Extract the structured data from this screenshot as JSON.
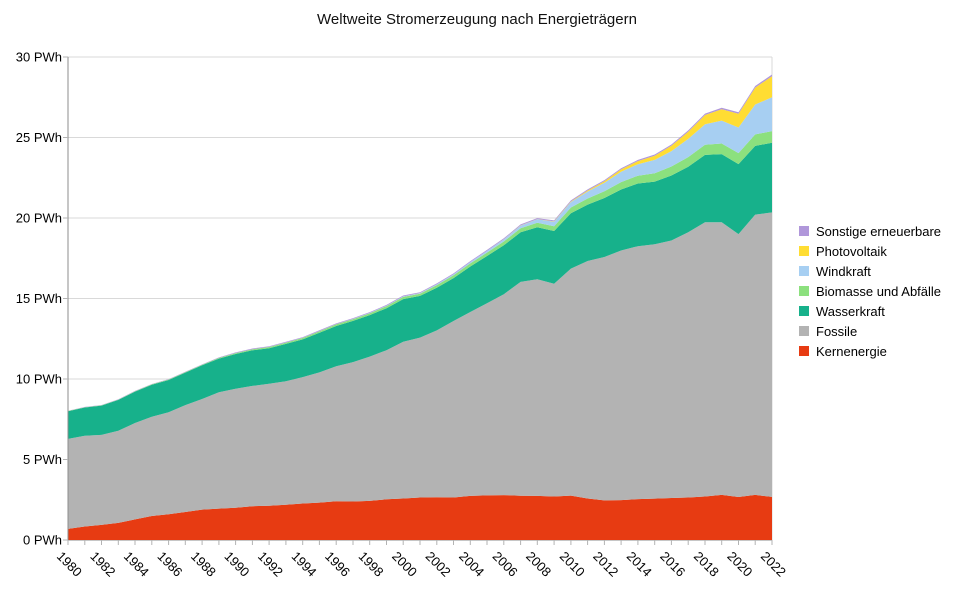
{
  "chart_data": {
    "type": "area",
    "stacked": true,
    "title": "Weltweite Stromerzeugung nach Energieträgern",
    "unit": "PWh",
    "ylim": [
      0,
      30
    ],
    "yticks": [
      0,
      5,
      10,
      15,
      20,
      25,
      30
    ],
    "ytick_suffix": " PWh",
    "x_label_every": 2,
    "grid": true,
    "legend_position": "right",
    "x": [
      1980,
      1981,
      1982,
      1983,
      1984,
      1985,
      1986,
      1987,
      1988,
      1989,
      1990,
      1991,
      1992,
      1993,
      1994,
      1995,
      1996,
      1997,
      1998,
      1999,
      2000,
      2001,
      2002,
      2003,
      2004,
      2005,
      2006,
      2007,
      2008,
      2009,
      2010,
      2011,
      2012,
      2013,
      2014,
      2015,
      2016,
      2017,
      2018,
      2019,
      2020,
      2021,
      2022
    ],
    "series": [
      {
        "name": "Kernenergie",
        "color": "#e73b12",
        "values": [
          0.69,
          0.84,
          0.94,
          1.06,
          1.28,
          1.49,
          1.6,
          1.74,
          1.89,
          1.95,
          2.0,
          2.1,
          2.13,
          2.19,
          2.27,
          2.32,
          2.41,
          2.39,
          2.43,
          2.53,
          2.58,
          2.64,
          2.66,
          2.64,
          2.74,
          2.77,
          2.79,
          2.75,
          2.74,
          2.7,
          2.76,
          2.58,
          2.46,
          2.48,
          2.54,
          2.57,
          2.61,
          2.64,
          2.7,
          2.8,
          2.67,
          2.8,
          2.68
        ]
      },
      {
        "name": "Fossile",
        "color": "#b3b3b3",
        "values": [
          5.59,
          5.63,
          5.59,
          5.73,
          5.99,
          6.17,
          6.33,
          6.64,
          6.87,
          7.23,
          7.39,
          7.47,
          7.57,
          7.67,
          7.85,
          8.09,
          8.38,
          8.66,
          8.96,
          9.26,
          9.73,
          9.93,
          10.36,
          10.96,
          11.42,
          11.94,
          12.48,
          13.28,
          13.45,
          13.22,
          14.1,
          14.75,
          15.12,
          15.5,
          15.71,
          15.8,
          15.99,
          16.47,
          17.03,
          16.94,
          16.33,
          17.41,
          17.67
        ]
      },
      {
        "name": "Wasserkraft",
        "color": "#17b18b",
        "values": [
          1.72,
          1.76,
          1.82,
          1.91,
          1.95,
          1.98,
          2.01,
          2.02,
          2.09,
          2.09,
          2.16,
          2.21,
          2.21,
          2.32,
          2.34,
          2.46,
          2.5,
          2.56,
          2.58,
          2.61,
          2.65,
          2.59,
          2.65,
          2.67,
          2.83,
          2.93,
          3.04,
          3.08,
          3.24,
          3.27,
          3.44,
          3.5,
          3.66,
          3.79,
          3.89,
          3.89,
          4.04,
          4.07,
          4.19,
          4.23,
          4.35,
          4.27,
          4.33
        ]
      },
      {
        "name": "Biomasse und Abfälle",
        "color": "#8ce07e",
        "values": [
          0.02,
          0.02,
          0.02,
          0.02,
          0.02,
          0.03,
          0.03,
          0.03,
          0.03,
          0.04,
          0.06,
          0.07,
          0.08,
          0.08,
          0.09,
          0.1,
          0.11,
          0.11,
          0.12,
          0.13,
          0.14,
          0.14,
          0.16,
          0.17,
          0.19,
          0.21,
          0.23,
          0.25,
          0.27,
          0.3,
          0.35,
          0.38,
          0.42,
          0.46,
          0.49,
          0.52,
          0.56,
          0.6,
          0.63,
          0.66,
          0.68,
          0.71,
          0.72
        ]
      },
      {
        "name": "Windkraft",
        "color": "#a7cff2",
        "values": [
          0,
          0,
          0,
          0,
          0,
          0,
          0,
          0,
          0,
          0.002,
          0.004,
          0.004,
          0.005,
          0.006,
          0.007,
          0.008,
          0.009,
          0.012,
          0.016,
          0.021,
          0.031,
          0.038,
          0.052,
          0.063,
          0.085,
          0.104,
          0.133,
          0.171,
          0.221,
          0.276,
          0.342,
          0.437,
          0.527,
          0.648,
          0.712,
          0.831,
          0.957,
          1.13,
          1.27,
          1.42,
          1.59,
          1.86,
          2.1
        ]
      },
      {
        "name": "Photovoltaik",
        "color": "#ffdd33",
        "values": [
          0,
          0,
          0,
          0,
          0,
          0,
          0,
          0,
          0,
          0,
          0,
          0,
          0,
          0,
          0,
          0,
          0,
          0,
          0,
          0,
          0.001,
          0.001,
          0.002,
          0.002,
          0.003,
          0.004,
          0.005,
          0.007,
          0.012,
          0.02,
          0.032,
          0.063,
          0.099,
          0.139,
          0.19,
          0.253,
          0.328,
          0.445,
          0.575,
          0.705,
          0.853,
          1.05,
          1.31
        ]
      },
      {
        "name": "Sonstige erneuerbare",
        "color": "#b097da",
        "values": [
          0.014,
          0.015,
          0.015,
          0.017,
          0.019,
          0.021,
          0.022,
          0.024,
          0.026,
          0.03,
          0.036,
          0.038,
          0.04,
          0.042,
          0.044,
          0.044,
          0.046,
          0.048,
          0.05,
          0.052,
          0.052,
          0.053,
          0.054,
          0.055,
          0.057,
          0.059,
          0.06,
          0.062,
          0.063,
          0.065,
          0.068,
          0.069,
          0.07,
          0.072,
          0.075,
          0.078,
          0.081,
          0.085,
          0.088,
          0.092,
          0.094,
          0.097,
          0.1
        ]
      }
    ],
    "legend_order_top_to_bottom": [
      "Sonstige erneuerbare",
      "Photovoltaik",
      "Windkraft",
      "Biomasse und Abfälle",
      "Wasserkraft",
      "Fossile",
      "Kernenergie"
    ]
  }
}
